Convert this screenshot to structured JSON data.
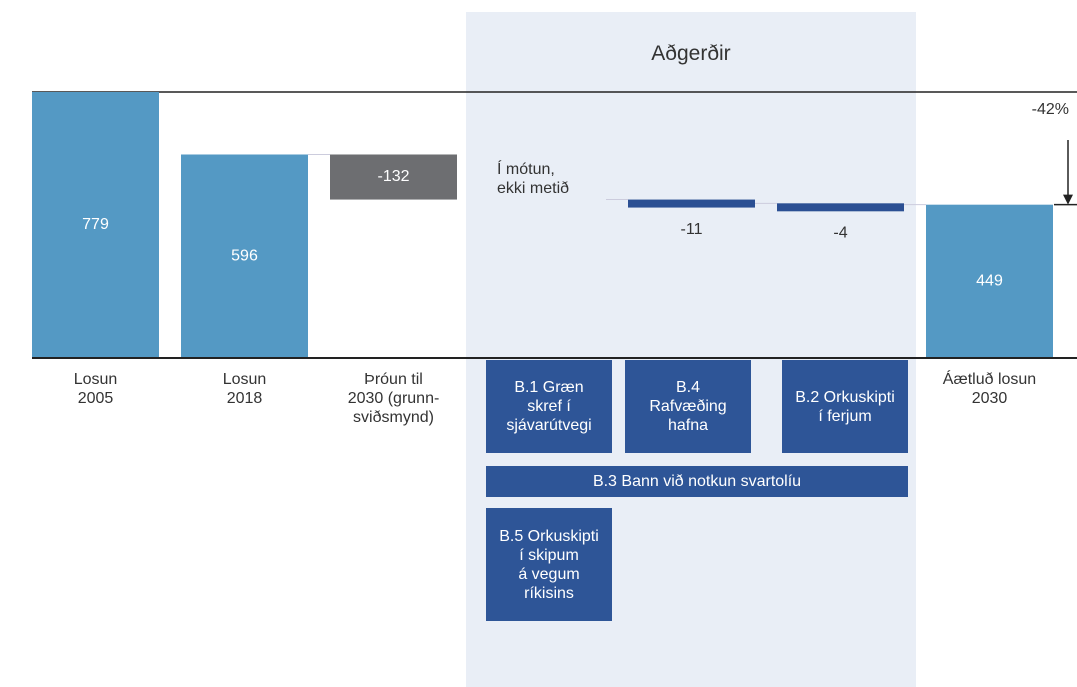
{
  "chart_data": {
    "type": "waterfall",
    "panel_title": "Aðgerðir",
    "categories": [
      "Losun\n2005",
      "Losun\n2018",
      "Þróun til\n2030 (grunn-\nsviðsmynd)",
      null,
      null,
      null,
      "Áætluð losun\n2030"
    ],
    "values": [
      779,
      596,
      -132,
      null,
      -11,
      -4,
      449
    ],
    "kinds": [
      "total",
      "total",
      "delta",
      null,
      "delta",
      "delta",
      "total"
    ],
    "colors": {
      "total": "#5499c4",
      "baseline_delta": "#6d6e71",
      "action_delta": "#2b4f93"
    },
    "annotations": [
      "Í mótun,\nekki metið",
      "-42%"
    ],
    "actions": [
      "B.1 Græn\nskref í\nsjávarútvegi",
      "B.4\nRafvæðing\nhafna",
      "B.2 Orkuskipti\ní ferjum",
      "B.3 Bann við notkun svartolíu",
      "B.5 Orkuskipti\ní skipum\ná vegum\nríkisins"
    ]
  }
}
